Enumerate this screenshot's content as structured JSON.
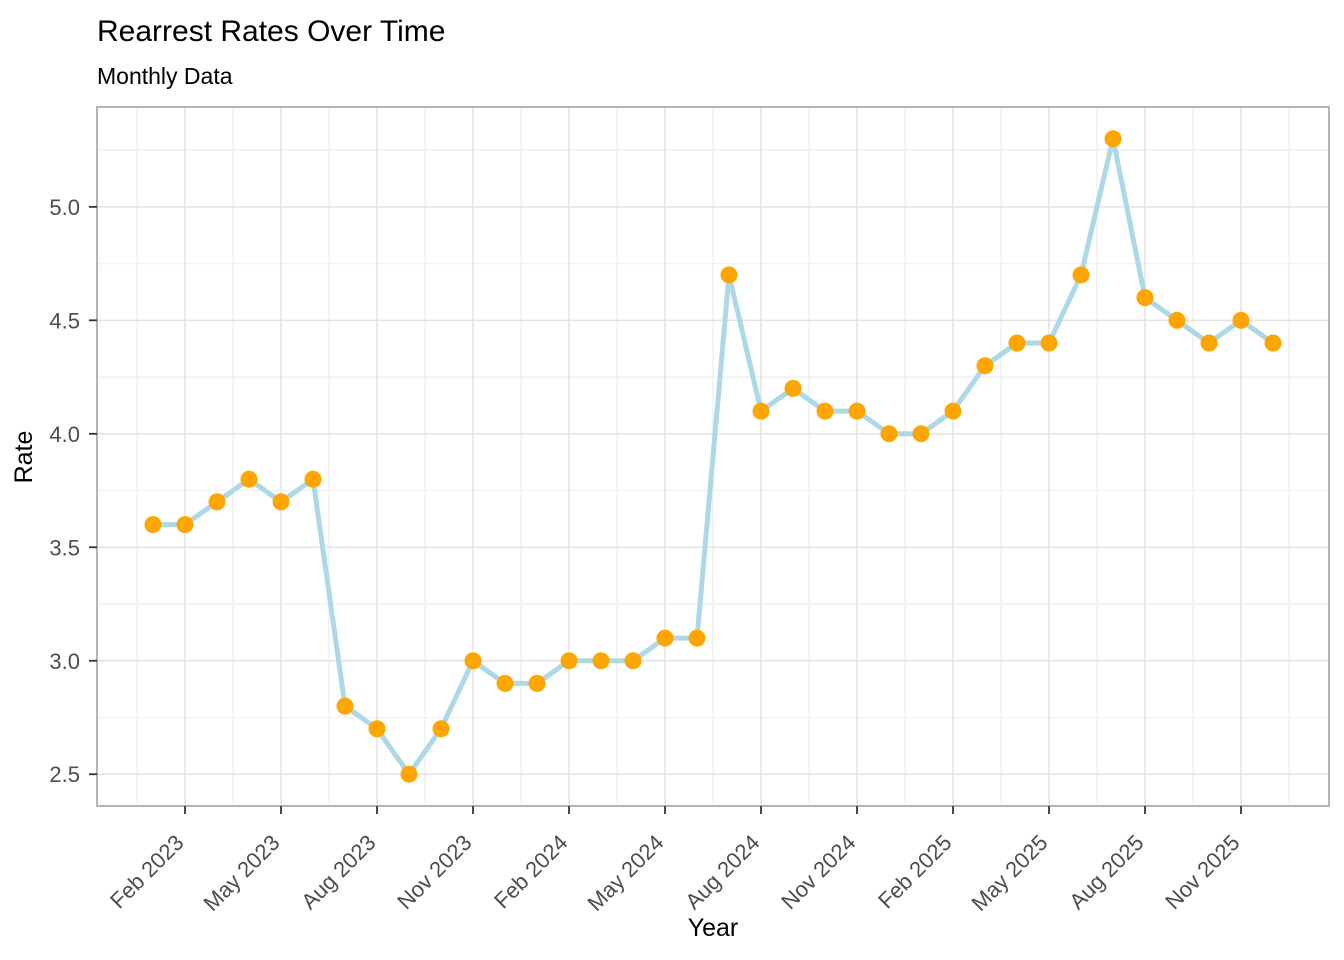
{
  "chart_data": {
    "type": "line",
    "title": "Rearrest Rates Over Time",
    "subtitle": "Monthly Data",
    "xlabel": "Year",
    "ylabel": "Rate",
    "x": [
      "Jan 2023",
      "Feb 2023",
      "Mar 2023",
      "Apr 2023",
      "May 2023",
      "Jun 2023",
      "Jul 2023",
      "Aug 2023",
      "Sep 2023",
      "Oct 2023",
      "Nov 2023",
      "Dec 2023",
      "Jan 2024",
      "Feb 2024",
      "Mar 2024",
      "Apr 2024",
      "May 2024",
      "Jun 2024",
      "Jul 2024",
      "Aug 2024",
      "Sep 2024",
      "Oct 2024",
      "Nov 2024",
      "Dec 2024",
      "Jan 2025",
      "Feb 2025",
      "Mar 2025",
      "Apr 2025",
      "May 2025",
      "Jun 2025",
      "Jul 2025",
      "Aug 2025",
      "Sep 2025",
      "Oct 2025",
      "Nov 2025",
      "Dec 2025"
    ],
    "values": [
      3.6,
      3.6,
      3.7,
      3.8,
      3.7,
      3.8,
      2.8,
      2.7,
      2.5,
      2.7,
      3.0,
      2.9,
      2.9,
      3.0,
      3.0,
      3.0,
      3.1,
      3.1,
      4.7,
      4.1,
      4.2,
      4.1,
      4.1,
      4.0,
      4.0,
      4.1,
      4.3,
      4.4,
      4.4,
      4.7,
      5.3,
      4.6,
      4.5,
      4.4,
      4.5,
      4.4
    ],
    "x_tick_labels": [
      "Feb 2023",
      "May 2023",
      "Aug 2023",
      "Nov 2023",
      "Feb 2024",
      "May 2024",
      "Aug 2024",
      "Nov 2024",
      "Feb 2025",
      "May 2025",
      "Aug 2025",
      "Nov 2025"
    ],
    "x_tick_month_index": [
      1,
      4,
      7,
      10,
      13,
      16,
      19,
      22,
      25,
      28,
      31,
      34
    ],
    "y_ticks": [
      2.5,
      3.0,
      3.5,
      4.0,
      4.5,
      5.0
    ],
    "y_tick_labels": [
      "2.5",
      "3.0",
      "3.5",
      "4.0",
      "4.5",
      "5.0"
    ],
    "y_minor_ticks": [
      2.75,
      3.25,
      3.75,
      4.25,
      4.75,
      5.25
    ],
    "ylim": [
      2.36,
      5.44
    ],
    "grid": "major+minor",
    "legend": "none",
    "colors": {
      "line": "#ADD8E6",
      "point": "#FFA500",
      "grid_major": "#E3E3E3",
      "grid_minor": "#F1F1F1",
      "panel_border": "#ACACAC",
      "tick_mark": "#333333",
      "tick_label": "#4D4D4D",
      "title": "#000000"
    }
  }
}
